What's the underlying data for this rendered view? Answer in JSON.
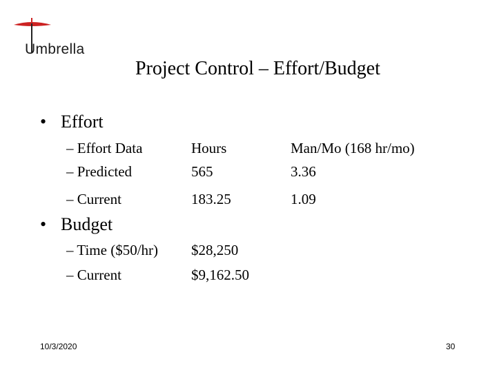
{
  "logo": {
    "text": "Umbrella"
  },
  "title": "Project Control – Effort/Budget",
  "effort": {
    "heading": "Effort",
    "rows": [
      {
        "label": "– Effort Data",
        "col1": "Hours",
        "col2": "Man/Mo (168 hr/mo)"
      },
      {
        "label": "– Predicted",
        "col1": "565",
        "col2": "3.36"
      },
      {
        "label": "– Current",
        "col1": "183.25",
        "col2": "1.09"
      }
    ]
  },
  "budget": {
    "heading": "Budget",
    "rows": [
      {
        "label": "– Time ($50/hr)",
        "col1": "$28,250"
      },
      {
        "label": "– Current",
        "col1": "$9,162.50"
      }
    ]
  },
  "footer": {
    "date": "10/3/2020",
    "page": "30"
  },
  "colors": {
    "logo_accent": "#cc2222",
    "logo_stem": "#222222"
  }
}
